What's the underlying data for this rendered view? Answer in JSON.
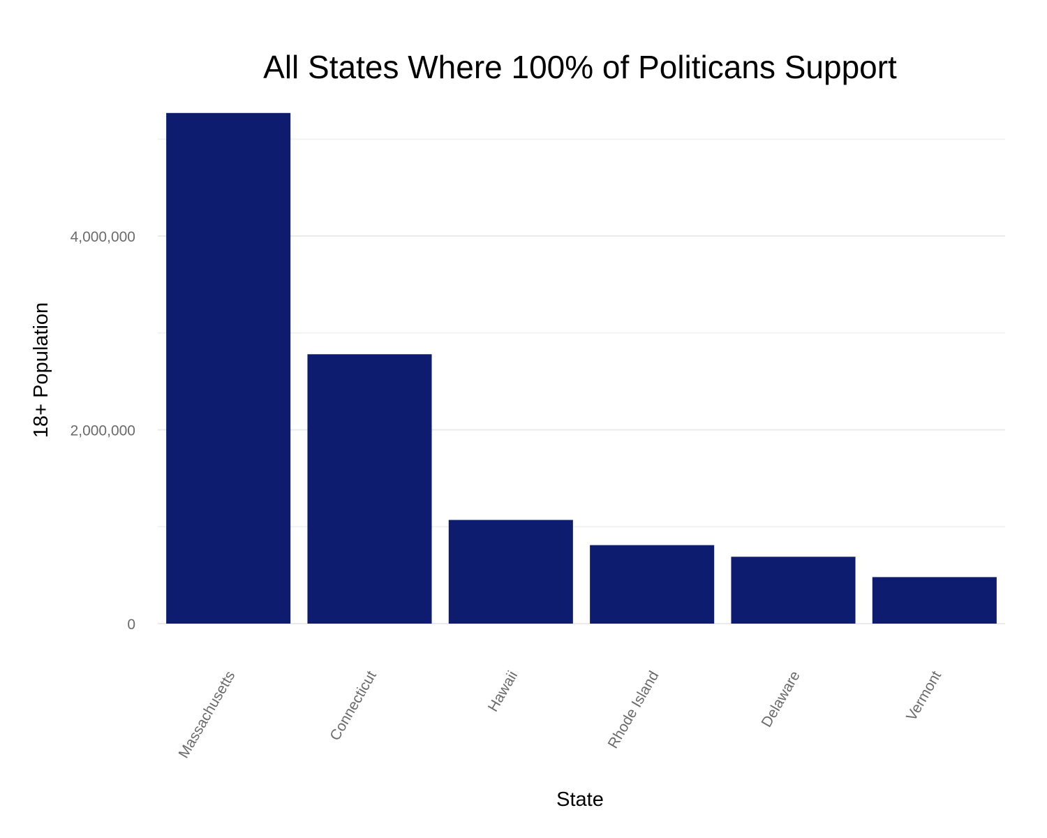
{
  "chart_data": {
    "type": "bar",
    "title": "All States Where 100% of Politicans Support",
    "xlabel": "State",
    "ylabel": "18+ Population",
    "categories": [
      "Massachusetts",
      "Connecticut",
      "Hawaii",
      "Rhode Island",
      "Delaware",
      "Vermont"
    ],
    "values": [
      5270000,
      2780000,
      1070000,
      810000,
      690000,
      480000
    ],
    "ylim": [
      0,
      5500000
    ],
    "yticks": [
      0,
      2000000,
      4000000
    ],
    "ytick_labels": [
      "0",
      "2,000,000",
      "4,000,000"
    ],
    "minor_gridlines": [
      1000000,
      3000000,
      5000000
    ],
    "bar_color": "#0d1c6e",
    "grid": true,
    "legend": "none"
  }
}
